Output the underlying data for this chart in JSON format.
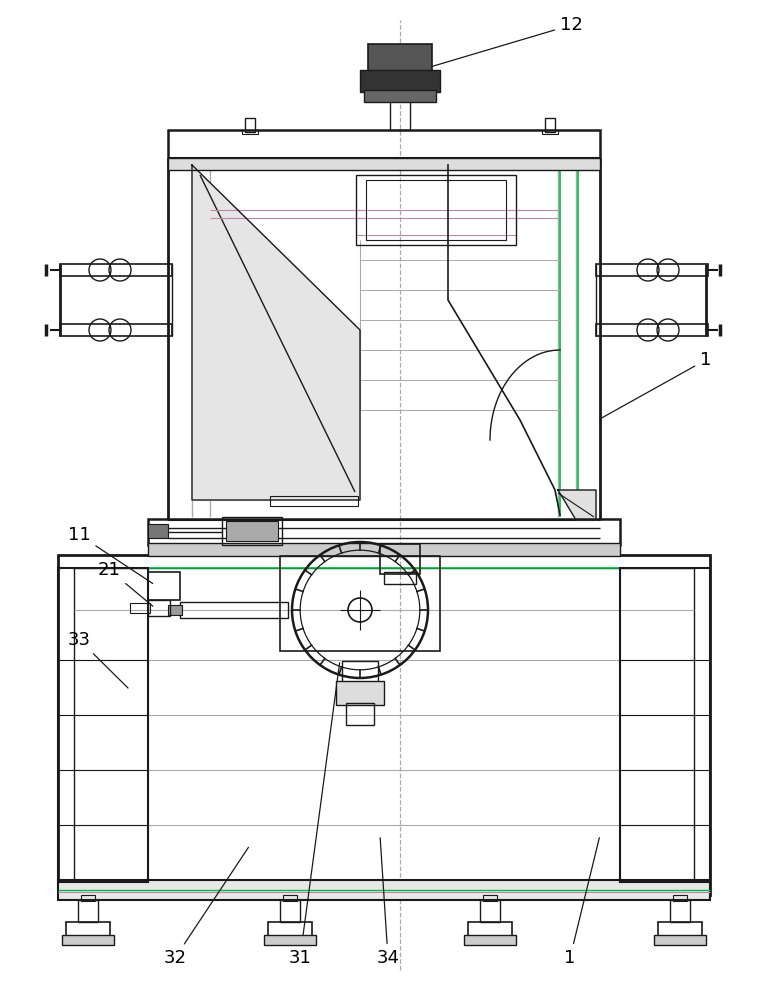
{
  "bg_color": "#ffffff",
  "line_color": "#1a1a1a",
  "light_line": "#aaaaaa",
  "green_line": "#00bb44",
  "pink_line": "#bb88aa",
  "label_color": "#000000",
  "label_fontsize": 13,
  "fig_width": 7.68,
  "fig_height": 10.0
}
